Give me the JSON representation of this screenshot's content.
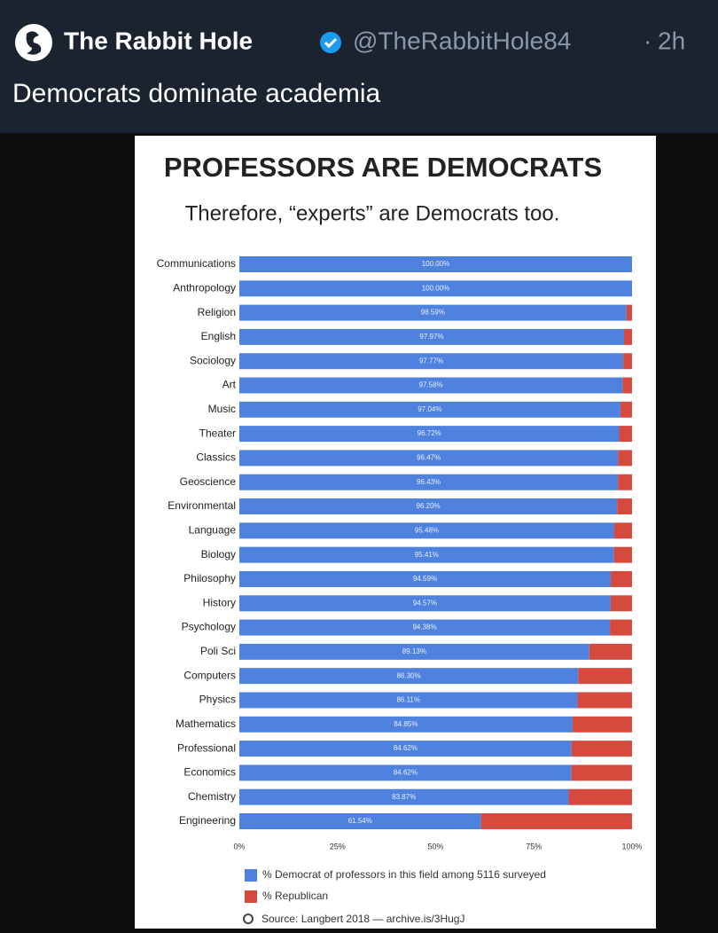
{
  "tweet": {
    "name": "The Rabbit Hole",
    "handle": "@TheRabbitHole84",
    "separator": "·",
    "time": "2h",
    "text": "Democrats dominate academia"
  },
  "chart_data": {
    "type": "stacked-hbar",
    "title": "PROFESSORS ARE DEMOCRATS",
    "subtitle": "Therefore, “experts” are Democrats too.",
    "categories": [
      "Communications",
      "Anthropology",
      "Religion",
      "English",
      "Sociology",
      "Art",
      "Music",
      "Theater",
      "Classics",
      "Geoscience",
      "Environmental",
      "Language",
      "Biology",
      "Philosophy",
      "History",
      "Psychology",
      "Poli Sci",
      "Computers",
      "Physics",
      "Mathematics",
      "Professional",
      "Economics",
      "Chemistry",
      "Engineering"
    ],
    "series": [
      {
        "name": "% Democrat of professors in this field among 5116 surveyed",
        "color": "#4f81df",
        "values": [
          100,
          100,
          98.59,
          97.97,
          97.77,
          97.58,
          97.04,
          96.72,
          96.47,
          96.43,
          96.2,
          95.48,
          95.41,
          94.59,
          94.57,
          94.38,
          89.13,
          86.3,
          86.11,
          84.85,
          84.62,
          84.62,
          83.87,
          61.54
        ],
        "value_labels": [
          "100.00%",
          "100.00%",
          "98.59%",
          "97.97%",
          "97.77%",
          "97.58%",
          "97.04%",
          "96.72%",
          "96.47%",
          "96.43%",
          "96.20%",
          "95.48%",
          "95.41%",
          "94.59%",
          "94.57%",
          "94.38%",
          "89.13%",
          "86.30%",
          "86.11%",
          "84.85%",
          "84.62%",
          "84.62%",
          "83.87%",
          "61.54%"
        ]
      },
      {
        "name": "% Republican",
        "color": "#d64a3e",
        "values": [
          0,
          0,
          1.41,
          2.03,
          2.23,
          2.42,
          2.96,
          3.28,
          3.53,
          3.57,
          3.8,
          4.52,
          4.59,
          5.41,
          5.43,
          5.62,
          10.87,
          13.7,
          13.89,
          15.15,
          15.38,
          15.38,
          16.13,
          38.46
        ]
      }
    ],
    "xlim": [
      0,
      100
    ],
    "xticks": [
      {
        "value": 0,
        "label": "0%"
      },
      {
        "value": 25,
        "label": "25%"
      },
      {
        "value": 50,
        "label": "50%"
      },
      {
        "value": 75,
        "label": "75%"
      },
      {
        "value": 100,
        "label": "100%"
      }
    ],
    "source": "Source: Langbert 2018 — archive.is/3HugJ"
  }
}
